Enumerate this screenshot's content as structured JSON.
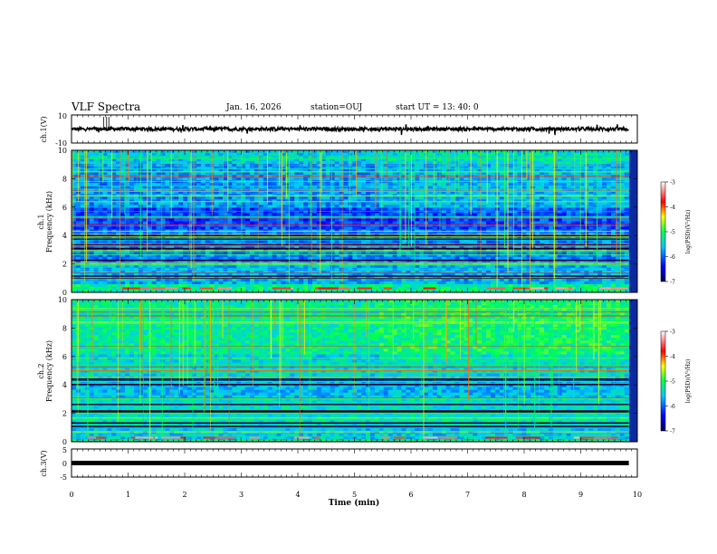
{
  "header": {
    "title": "VLF Spectra",
    "date": "Jan. 16, 2026",
    "station": "station=OUJ",
    "start": "start  UT =  13: 40: 0"
  },
  "chart_data": [
    {
      "type": "line",
      "ylabel": "ch.1(V)",
      "ylim": [
        -10,
        10
      ],
      "yticks": [
        "10",
        "-10"
      ],
      "baseline": 0
    },
    {
      "type": "heatmap",
      "ylabel": [
        "ch.1",
        "Frequency (kHz)"
      ],
      "ylim": [
        0,
        10
      ],
      "yticks": [
        "0",
        "2",
        "4",
        "6",
        "8",
        "10"
      ],
      "colorbar": {
        "label": "log(PSD)(V²/Hz)",
        "ticks": [
          "-3",
          "-4",
          "-5",
          "-6",
          "-7"
        ],
        "range": [
          -7,
          -3
        ]
      }
    },
    {
      "type": "heatmap",
      "ylabel": [
        "ch.2",
        "Frequency (kHz)"
      ],
      "ylim": [
        0,
        10
      ],
      "yticks": [
        "0",
        "2",
        "4",
        "6",
        "8",
        "10"
      ],
      "colorbar": {
        "label": "log(PSD)(V²/Hz)",
        "ticks": [
          "-3",
          "-4",
          "-5",
          "-6",
          "-7"
        ],
        "range": [
          -7,
          -3
        ]
      }
    },
    {
      "type": "line",
      "ylabel": "ch.3(V)",
      "ylim": [
        -5,
        5
      ],
      "yticks": [
        "5",
        "0",
        "-5"
      ],
      "baseline": 0
    }
  ],
  "x_axis": {
    "xlabel": "Time (min)",
    "xlim": [
      0,
      10
    ],
    "ticks": [
      "0",
      "1",
      "2",
      "3",
      "4",
      "5",
      "6",
      "7",
      "8",
      "9",
      "10"
    ],
    "data_end": 9.85
  }
}
